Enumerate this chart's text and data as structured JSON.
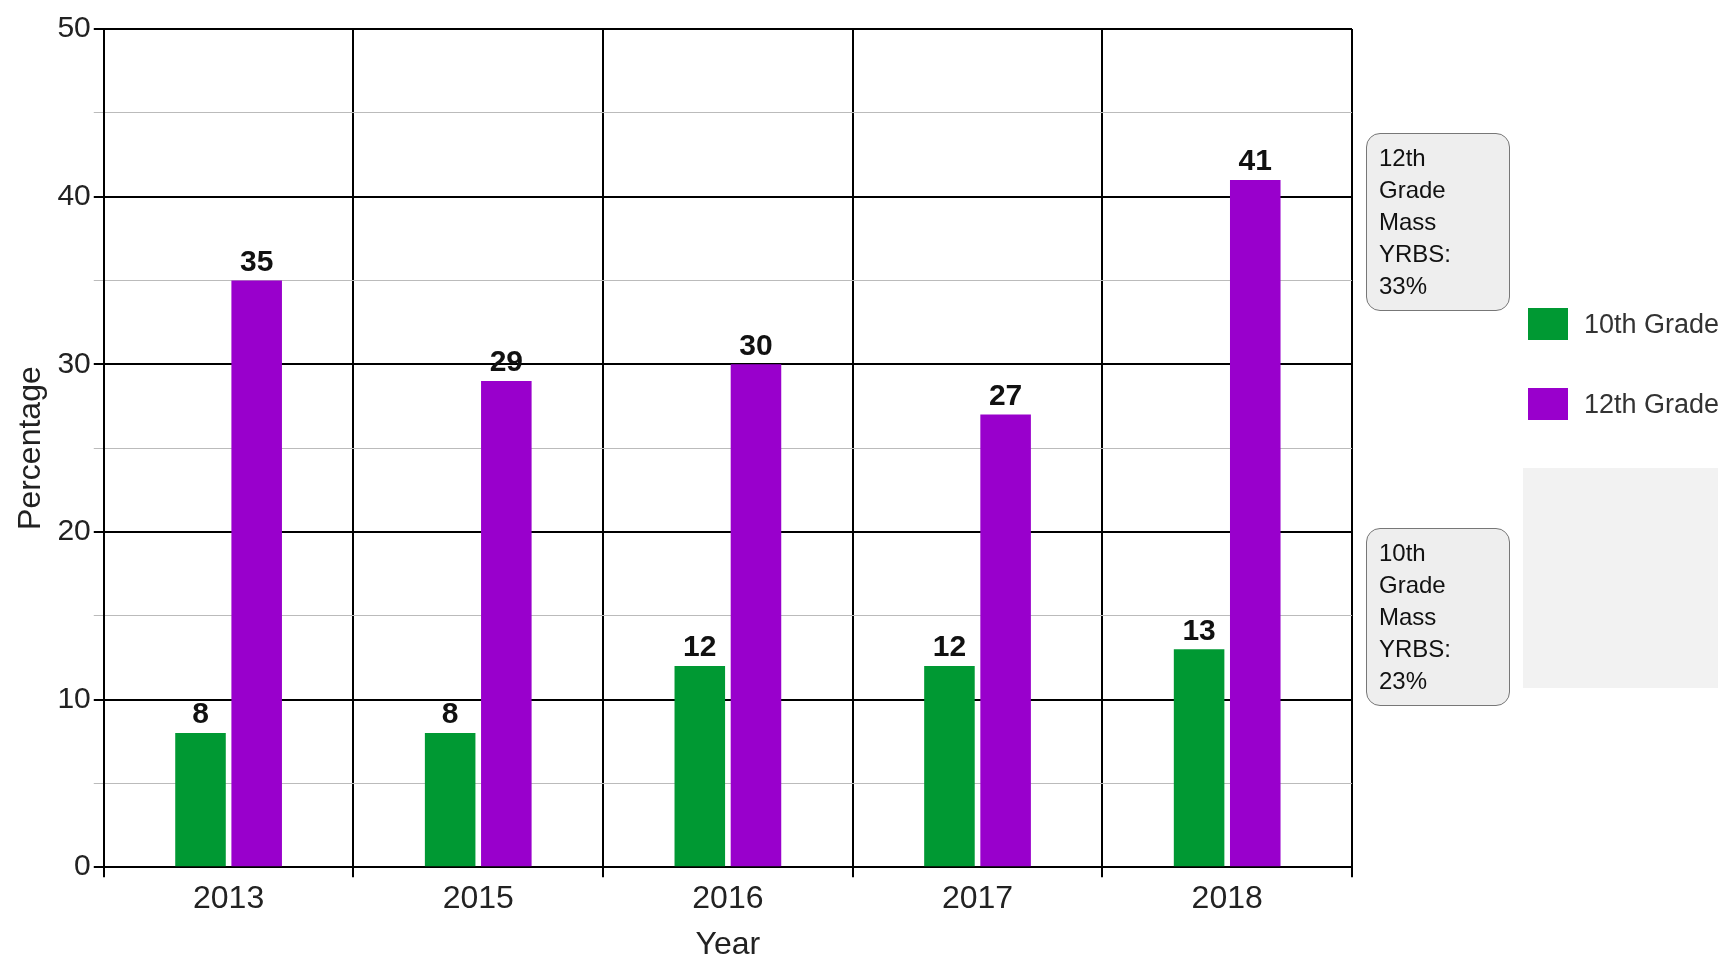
{
  "chart_data": {
    "type": "bar",
    "xlabel": "Year",
    "ylabel": "Percentage",
    "categories": [
      "2013",
      "2015",
      "2016",
      "2017",
      "2018"
    ],
    "series": [
      {
        "name": "10th Grade",
        "color": "#009933",
        "values": [
          8,
          8,
          12,
          12,
          13
        ]
      },
      {
        "name": "12th Grade",
        "color": "#9900cc",
        "values": [
          35,
          29,
          30,
          27,
          41
        ]
      }
    ],
    "ylim": [
      0,
      50
    ],
    "yticks": [
      0,
      {
        "value": 5,
        "label": null
      },
      10,
      {
        "value": 15,
        "label": null
      },
      20,
      {
        "value": 25,
        "label": null
      },
      30,
      {
        "value": 35,
        "label": null
      },
      40,
      {
        "value": 45,
        "label": null
      },
      50
    ],
    "grid": true,
    "legend": "right",
    "data_labels": true,
    "annotations": [
      "12th Grade Mass YRBS: 33%",
      "10th Grade Mass YRBS: 23%"
    ]
  }
}
